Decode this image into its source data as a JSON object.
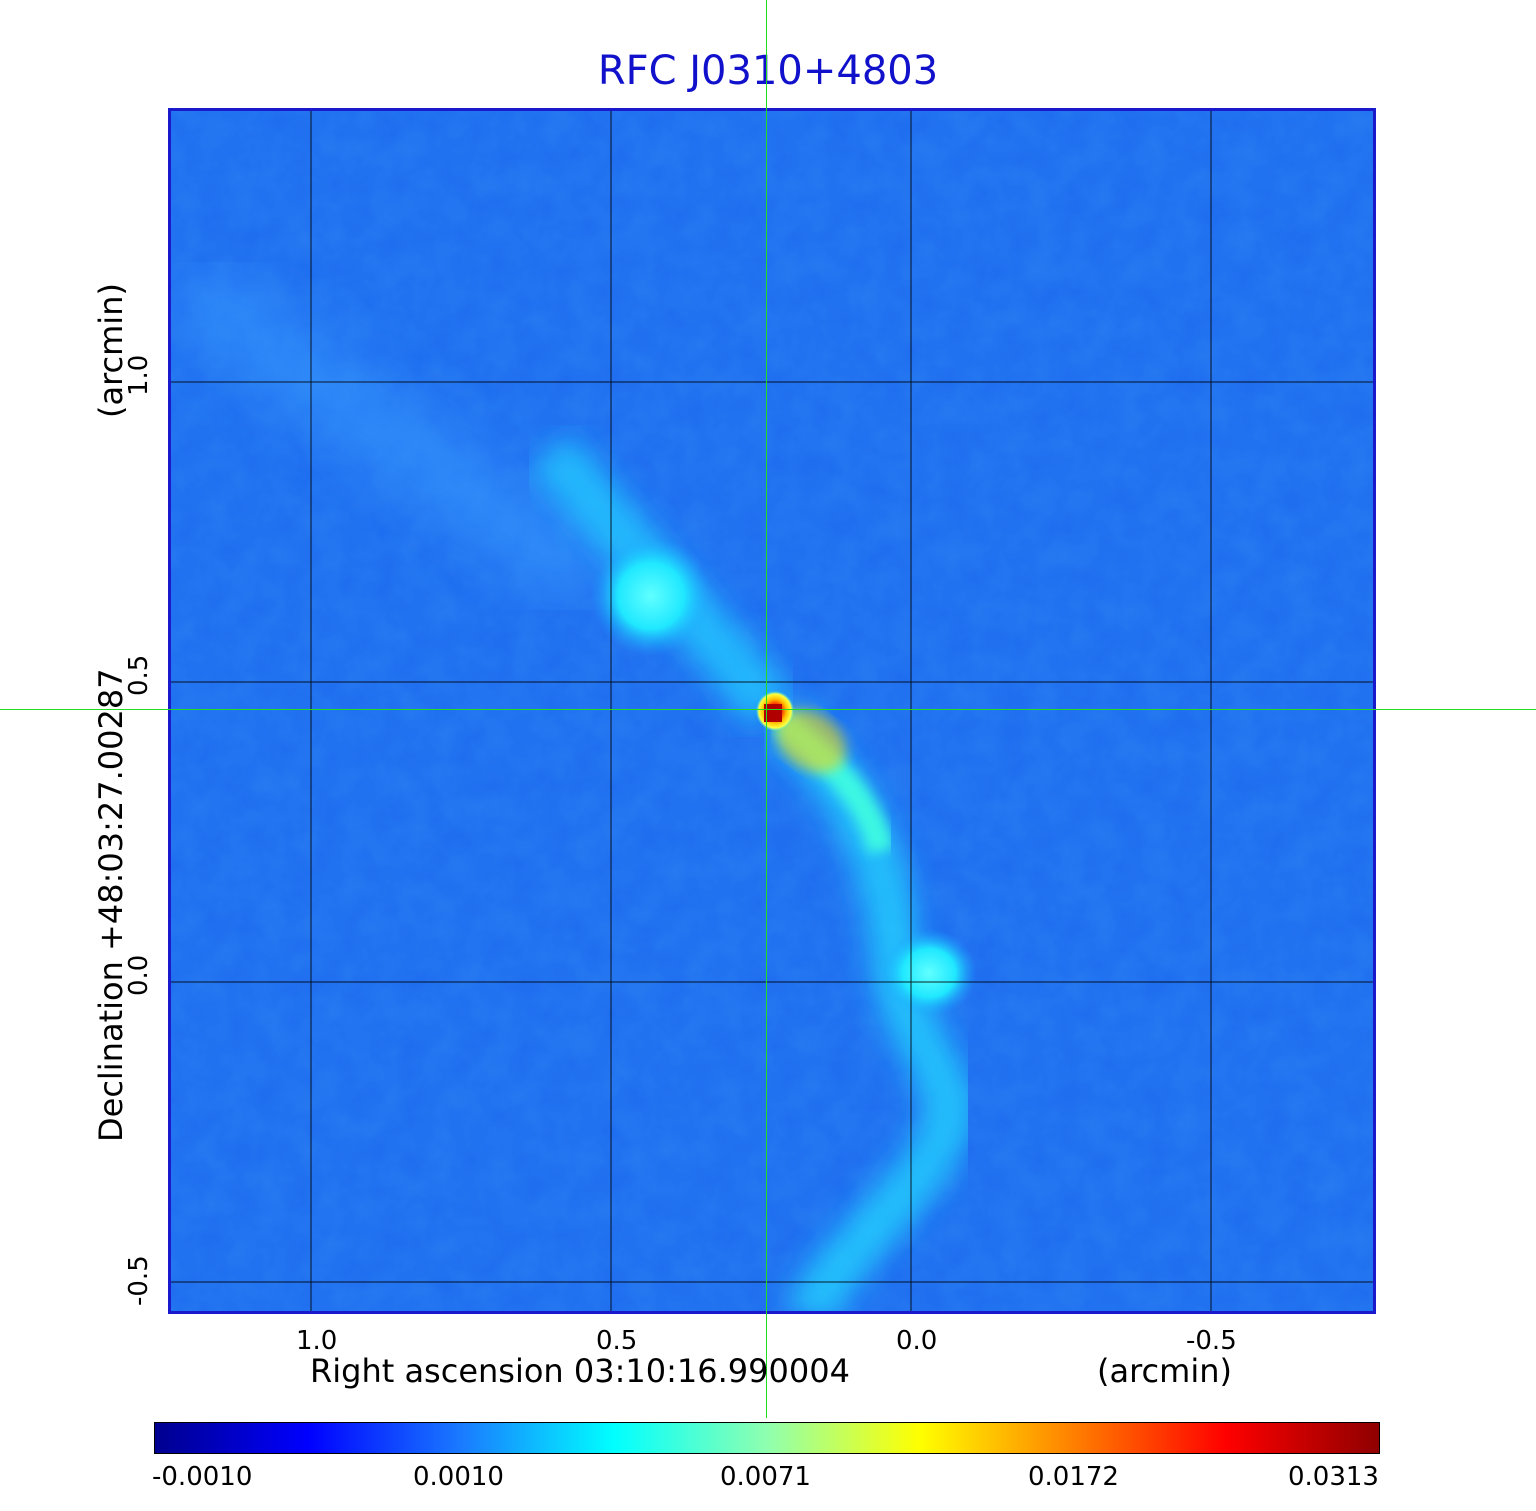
{
  "title": "RFC J0310+4803",
  "x_axis": {
    "label": "Right ascension  03:10:16.990004",
    "unit": "(arcmin)",
    "ticks": [
      "1.0",
      "0.5",
      "0.0",
      "-0.5"
    ]
  },
  "y_axis": {
    "label": "Declination  +48:03:27.00287",
    "unit": "(arcmin)",
    "ticks": [
      "1.0",
      "0.5",
      "0.0",
      "-0.5"
    ]
  },
  "colorbar": {
    "ticks": [
      "-0.0010",
      "0.0010",
      "0.0071",
      "0.0172",
      "0.0313"
    ],
    "colors": [
      "#00008f",
      "#0000ff",
      "#1a7aff",
      "#00ffff",
      "#8fffaf",
      "#ffff00",
      "#ff8000",
      "#ff0000",
      "#8f0000"
    ]
  },
  "colors": {
    "title": "#1111cc",
    "frame": "#1a1acc",
    "background_field": "#1f6ef0",
    "crosshair": "#22dd22",
    "grid": "#000000"
  }
}
